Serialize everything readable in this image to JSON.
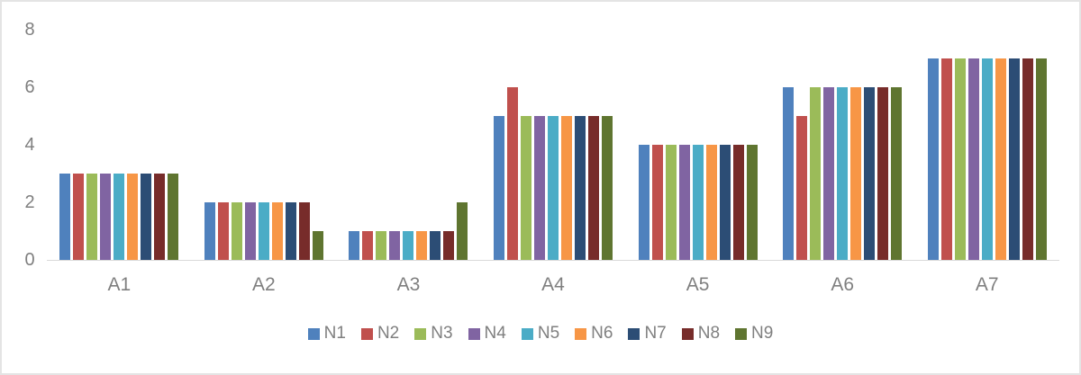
{
  "chart_data": {
    "type": "bar",
    "title": "",
    "xlabel": "",
    "ylabel": "",
    "categories": [
      "A1",
      "A2",
      "A3",
      "A4",
      "A5",
      "A6",
      "A7"
    ],
    "series": [
      {
        "name": "N1",
        "color": "#4F81BD",
        "values": [
          3,
          2,
          1,
          5,
          4,
          6,
          7
        ]
      },
      {
        "name": "N2",
        "color": "#C0504D",
        "values": [
          3,
          2,
          1,
          6,
          4,
          5,
          7
        ]
      },
      {
        "name": "N3",
        "color": "#9BBB59",
        "values": [
          3,
          2,
          1,
          5,
          4,
          6,
          7
        ]
      },
      {
        "name": "N4",
        "color": "#8064A2",
        "values": [
          3,
          2,
          1,
          5,
          4,
          6,
          7
        ]
      },
      {
        "name": "N5",
        "color": "#4BACC6",
        "values": [
          3,
          2,
          1,
          5,
          4,
          6,
          7
        ]
      },
      {
        "name": "N6",
        "color": "#F79646",
        "values": [
          3,
          2,
          1,
          5,
          4,
          6,
          7
        ]
      },
      {
        "name": "N7",
        "color": "#2C4D75",
        "values": [
          3,
          2,
          1,
          5,
          4,
          6,
          7
        ]
      },
      {
        "name": "N8",
        "color": "#772C2A",
        "values": [
          3,
          2,
          1,
          5,
          4,
          6,
          7
        ]
      },
      {
        "name": "N9",
        "color": "#5F7530",
        "values": [
          3,
          1,
          2,
          5,
          4,
          6,
          7
        ]
      }
    ],
    "ylim": [
      0,
      8
    ],
    "yticks": [
      0,
      2,
      4,
      6,
      8
    ],
    "grid": false,
    "legend_position": "bottom",
    "axis_line_color": "#D9D9D9",
    "text_color": "#7F7F7F"
  }
}
